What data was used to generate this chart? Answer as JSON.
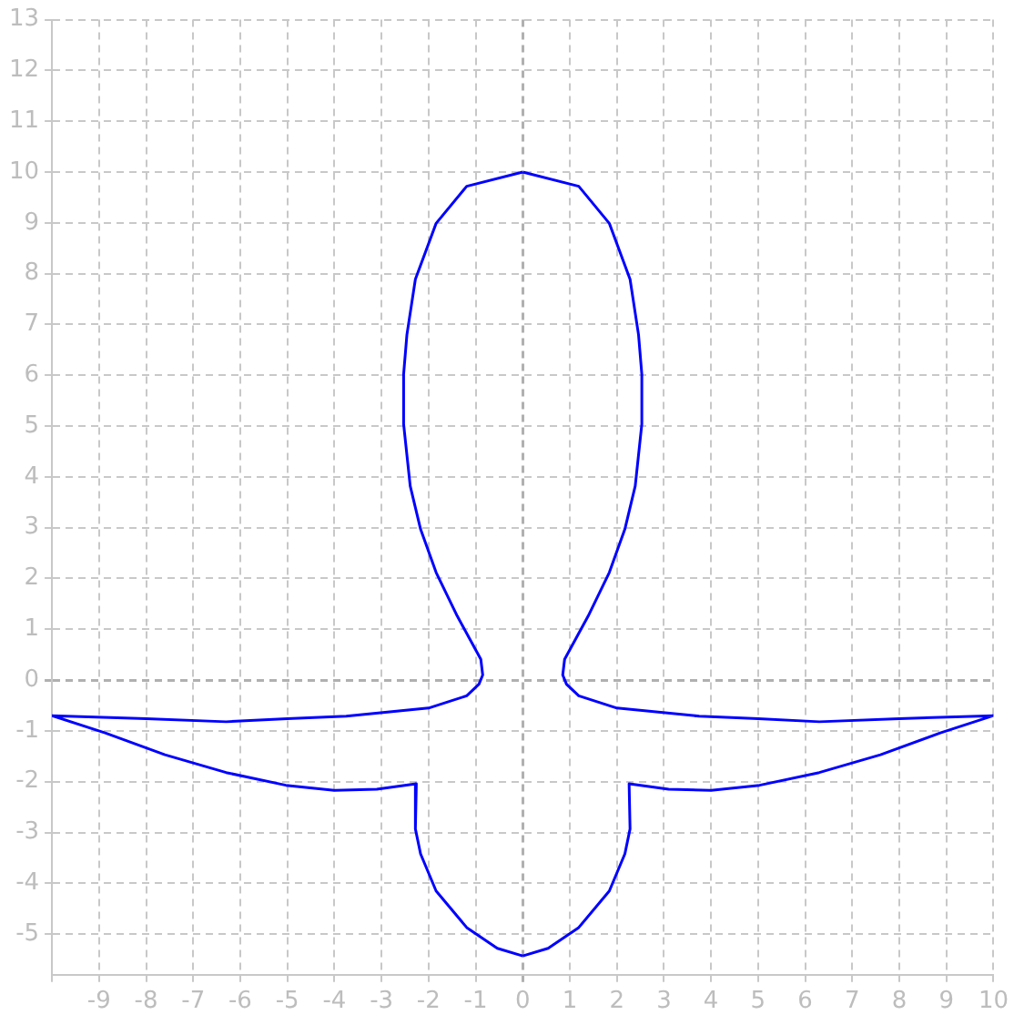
{
  "chart_data": {
    "type": "line",
    "xlim": [
      -10,
      10
    ],
    "ylim": [
      -5.8,
      13
    ],
    "xticks": [
      {
        "value": -10,
        "label": null
      },
      -9,
      -8,
      -7,
      -6,
      -5,
      -4,
      -3,
      -2,
      -1,
      0,
      1,
      2,
      3,
      4,
      5,
      6,
      7,
      8,
      9,
      10
    ],
    "yticks": [
      -5,
      -4,
      -3,
      -2,
      -1,
      0,
      1,
      2,
      3,
      4,
      5,
      6,
      7,
      8,
      9,
      10,
      11,
      12,
      13
    ],
    "grid": true,
    "legend": false,
    "marker": "none",
    "line_style": "solid",
    "series": [
      {
        "color": "#0000ff",
        "x": [
          0,
          1.19,
          1.84,
          2.28,
          2.46,
          2.53,
          2.53,
          2.39,
          2.17,
          1.84,
          1.39,
          0.89,
          0.85,
          0.93,
          1.19,
          2.0,
          3.75,
          5.0,
          6.3,
          8.0,
          10,
          8.87,
          7.6,
          6.3,
          5.03,
          4.0,
          3.1,
          2.26,
          2.28,
          2.17,
          1.84,
          1.19,
          0.54,
          0
        ],
        "values": [
          10,
          9.72,
          8.99,
          7.89,
          6.8,
          6.02,
          5.04,
          3.82,
          2.97,
          2.12,
          1.26,
          0.41,
          0.1,
          -0.08,
          -0.31,
          -0.55,
          -0.71,
          -0.76,
          -0.82,
          -0.76,
          -0.7,
          -1.04,
          -1.47,
          -1.82,
          -2.07,
          -2.17,
          -2.15,
          -2.04,
          -2.93,
          -3.42,
          -4.15,
          -4.87,
          -5.28,
          -5.43
        ]
      },
      {
        "color": "#0000ff",
        "x": [
          0,
          -1.19,
          -1.84,
          -2.28,
          -2.46,
          -2.53,
          -2.53,
          -2.39,
          -2.17,
          -1.84,
          -1.39,
          -0.89,
          -0.85,
          -0.93,
          -1.19,
          -2.0,
          -3.75,
          -5.0,
          -6.3,
          -8.0,
          -10,
          -8.87,
          -7.6,
          -6.3,
          -5.03,
          -4.0,
          -3.1,
          -2.26,
          -2.28,
          -2.17,
          -1.84,
          -1.19,
          -0.54,
          0
        ],
        "values": [
          10,
          9.72,
          8.99,
          7.89,
          6.8,
          6.02,
          5.04,
          3.82,
          2.97,
          2.12,
          1.26,
          0.41,
          0.1,
          -0.08,
          -0.31,
          -0.55,
          -0.71,
          -0.76,
          -0.82,
          -0.76,
          -0.7,
          -1.04,
          -1.47,
          -1.82,
          -2.07,
          -2.17,
          -2.15,
          -2.04,
          -2.93,
          -3.42,
          -4.15,
          -4.87,
          -5.28,
          -5.43
        ]
      }
    ]
  }
}
